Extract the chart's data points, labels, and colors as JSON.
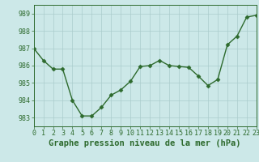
{
  "x": [
    0,
    1,
    2,
    3,
    4,
    5,
    6,
    7,
    8,
    9,
    10,
    11,
    12,
    13,
    14,
    15,
    16,
    17,
    18,
    19,
    20,
    21,
    22,
    23
  ],
  "y": [
    987.0,
    986.3,
    985.8,
    985.8,
    984.0,
    983.1,
    983.1,
    983.6,
    984.3,
    984.6,
    985.1,
    985.95,
    986.0,
    986.3,
    986.0,
    985.95,
    985.9,
    985.4,
    984.85,
    985.2,
    987.2,
    987.7,
    988.8,
    988.9
  ],
  "xlim": [
    0,
    23
  ],
  "ylim": [
    982.5,
    989.5
  ],
  "yticks": [
    983,
    984,
    985,
    986,
    987,
    988,
    989
  ],
  "xticks": [
    0,
    1,
    2,
    3,
    4,
    5,
    6,
    7,
    8,
    9,
    10,
    11,
    12,
    13,
    14,
    15,
    16,
    17,
    18,
    19,
    20,
    21,
    22,
    23
  ],
  "xlabel": "Graphe pression niveau de la mer (hPa)",
  "line_color": "#2d6a2d",
  "marker": "D",
  "marker_size": 2.5,
  "bg_color": "#cce8e8",
  "grid_color": "#aacccc",
  "xlabel_fontsize": 7.5,
  "tick_fontsize": 6.0,
  "linewidth": 1.0
}
